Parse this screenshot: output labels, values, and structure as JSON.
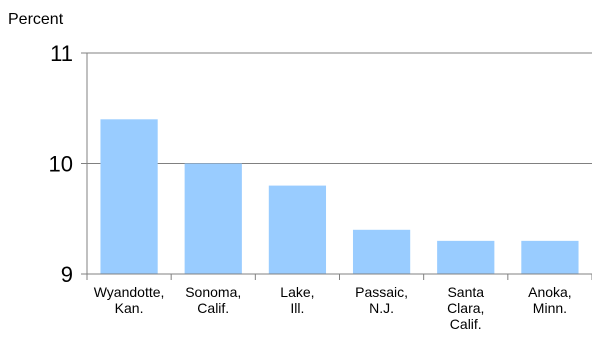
{
  "chart_data": {
    "type": "bar",
    "y_unit_label": "Percent",
    "categories": [
      [
        "Wyandotte,",
        "Kan."
      ],
      [
        "Sonoma,",
        "Calif."
      ],
      [
        "Lake,",
        "Ill."
      ],
      [
        "Passaic,",
        "N.J."
      ],
      [
        "Santa",
        "Clara,",
        "Calif."
      ],
      [
        "Anoka,",
        "Minn."
      ]
    ],
    "values": [
      10.4,
      10.0,
      9.8,
      9.4,
      9.3,
      9.3
    ],
    "ylim": [
      9,
      11
    ],
    "y_ticks": [
      "9",
      "10",
      "11"
    ],
    "bar_color": "#99ccff",
    "axis_color": "#808080",
    "grid": true
  }
}
